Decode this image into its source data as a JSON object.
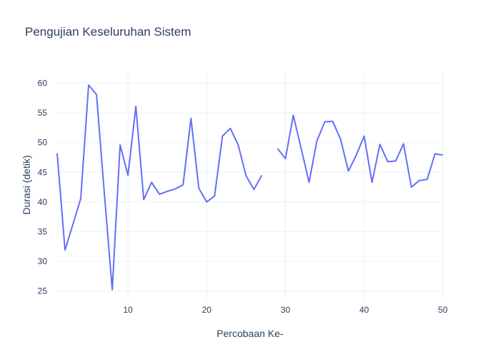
{
  "chart_data": {
    "type": "line",
    "title": "Pengujian Keseluruhan Sistem",
    "xlabel": "Percobaan Ke-",
    "ylabel": "Durasi (detik)",
    "xlim": [
      1,
      50
    ],
    "ylim": [
      23.5,
      62
    ],
    "x_ticks": [
      10,
      20,
      30,
      40,
      50
    ],
    "y_ticks": [
      25,
      30,
      35,
      40,
      45,
      50,
      55,
      60
    ],
    "grid": true,
    "colors": {
      "series": "#636efa",
      "grid": "#ebf0f8",
      "text": "#2a3f5f"
    },
    "series": [
      {
        "x": [
          1,
          2,
          3,
          4,
          5,
          6,
          7,
          8,
          9,
          10,
          11,
          12,
          13,
          14,
          15,
          16,
          17,
          18,
          19,
          20,
          21,
          22,
          23,
          24,
          25,
          26,
          27,
          28,
          29,
          30,
          31,
          32,
          33,
          34,
          35,
          36,
          37,
          38,
          39,
          40,
          41,
          42,
          43,
          44,
          45,
          46,
          47,
          48,
          49,
          50
        ],
        "values": [
          48.2,
          31.9,
          36.2,
          40.6,
          59.7,
          58.1,
          41.4,
          25.2,
          49.6,
          44.5,
          56.1,
          40.4,
          43.3,
          41.3,
          41.8,
          42.2,
          42.9,
          54.1,
          42.3,
          40.0,
          41.0,
          51.1,
          52.4,
          49.6,
          44.4,
          42.1,
          44.5,
          null,
          49.0,
          47.3,
          54.6,
          49.0,
          43.3,
          50.3,
          53.5,
          53.6,
          50.6,
          45.2,
          47.9,
          51.1,
          43.3,
          49.7,
          46.8,
          46.9,
          49.8,
          42.5,
          43.6,
          43.8,
          48.1,
          47.9
        ]
      }
    ]
  }
}
